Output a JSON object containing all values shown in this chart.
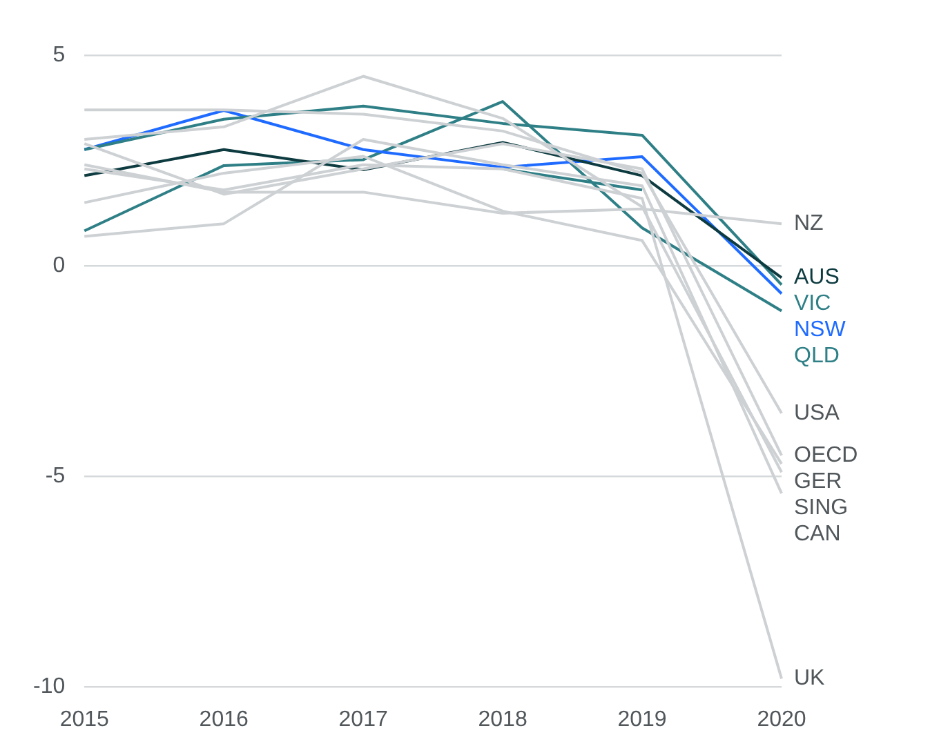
{
  "chart_data": {
    "type": "line",
    "categories": [
      "2015",
      "2016",
      "2017",
      "2018",
      "2019",
      "2020"
    ],
    "ylim": [
      -10,
      5
    ],
    "yticks": [
      -10,
      -5,
      0,
      5
    ],
    "grid": "y",
    "legend": false,
    "marker": "none",
    "line_style": "solid",
    "series": [
      {
        "name": "NZ",
        "color": "#cdd1d4",
        "values": [
          2.4,
          1.75,
          1.75,
          1.25,
          1.35,
          1.0
        ]
      },
      {
        "name": "USA",
        "color": "#cdd1d4",
        "values": [
          3.7,
          3.7,
          3.6,
          3.2,
          2.2,
          -3.5
        ]
      },
      {
        "name": "OECD",
        "color": "#cdd1d4",
        "values": [
          2.9,
          1.7,
          2.3,
          2.9,
          2.3,
          -4.5
        ]
      },
      {
        "name": "GER",
        "color": "#cdd1d4",
        "values": [
          1.5,
          2.2,
          2.6,
          1.3,
          0.6,
          -4.7
        ]
      },
      {
        "name": "SING",
        "color": "#cdd1d4",
        "values": [
          3.0,
          3.3,
          4.5,
          3.5,
          1.4,
          -4.9
        ]
      },
      {
        "name": "CAN",
        "color": "#cdd1d4",
        "values": [
          0.7,
          1.0,
          3.0,
          2.4,
          1.9,
          -5.4
        ]
      },
      {
        "name": "UK",
        "color": "#cdd1d4",
        "values": [
          2.3,
          1.8,
          2.4,
          2.3,
          1.6,
          -9.8
        ]
      },
      {
        "color": "#2e7f86",
        "values": [
          null,
          null,
          null,
          2.3,
          1.8,
          null
        ]
      },
      {
        "name": "AUS",
        "color": "#0d3b40",
        "values": [
          2.14,
          2.76,
          2.28,
          2.93,
          2.14,
          -0.28
        ]
      },
      {
        "name": "VIC",
        "color": "#2e7f86",
        "values": [
          2.76,
          3.48,
          3.79,
          3.38,
          3.1,
          -0.45
        ]
      },
      {
        "name": "NSW",
        "color": "#1f6bff",
        "values": [
          2.76,
          3.69,
          2.76,
          2.34,
          2.59,
          -0.66
        ]
      },
      {
        "name": "QLD",
        "color": "#2e7f86",
        "values": [
          0.83,
          2.38,
          2.52,
          3.9,
          0.9,
          -1.07
        ]
      }
    ]
  }
}
